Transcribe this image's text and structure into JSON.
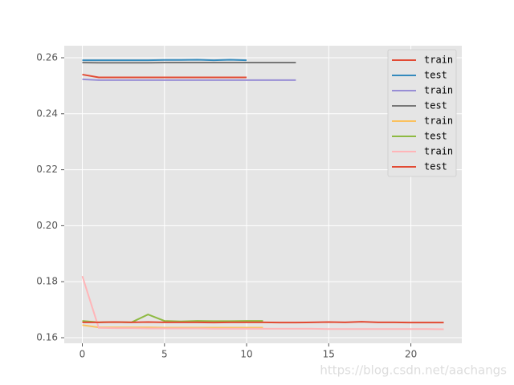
{
  "chart_data": {
    "type": "line",
    "watermark": "https://blog.csdn.net/aachangs",
    "xlim": [
      -1.1,
      23.1
    ],
    "xticks": [
      0,
      5,
      10,
      15,
      20
    ],
    "ylim": [
      0.158,
      0.2643
    ],
    "yticks": [
      0.16,
      0.18,
      {
        "value": 0.2,
        "label": "0.20"
      },
      0.22,
      0.24,
      0.26
    ],
    "grid": true,
    "legend": "upper right",
    "series": [
      {
        "name": "train",
        "color": "#E24A33",
        "x": [
          0,
          1,
          2,
          3,
          4,
          5,
          6,
          7,
          8,
          9,
          10
        ],
        "values": [
          0.254,
          0.253,
          0.253,
          0.253,
          0.253,
          0.253,
          0.253,
          0.253,
          0.253,
          0.253,
          0.253
        ]
      },
      {
        "name": "test",
        "color": "#348ABD",
        "x": [
          0,
          1,
          2,
          3,
          4,
          5,
          6,
          7,
          8,
          9,
          10
        ],
        "values": [
          0.2591,
          0.2591,
          0.2591,
          0.2591,
          0.2591,
          0.2592,
          0.2592,
          0.2593,
          0.2591,
          0.2593,
          0.2591
        ]
      },
      {
        "name": "train",
        "color": "#988ED5",
        "x": [
          0,
          1,
          2,
          3,
          4,
          5,
          6,
          7,
          8,
          9,
          10,
          11,
          12,
          13
        ],
        "values": [
          0.2523,
          0.252,
          0.252,
          0.252,
          0.252,
          0.252,
          0.252,
          0.252,
          0.252,
          0.252,
          0.252,
          0.252,
          0.252,
          0.252
        ]
      },
      {
        "name": "test",
        "color": "#777777",
        "x": [
          0,
          1,
          2,
          3,
          4,
          5,
          6,
          7,
          8,
          9,
          10,
          11,
          12,
          13
        ],
        "values": [
          0.2583,
          0.2582,
          0.2582,
          0.2582,
          0.2582,
          0.2583,
          0.2583,
          0.2583,
          0.2583,
          0.2583,
          0.2583,
          0.2583,
          0.2583,
          0.2583
        ]
      },
      {
        "name": "train",
        "color": "#FBC15E",
        "x": [
          0,
          1,
          2,
          3,
          4,
          5,
          6,
          7,
          8,
          9,
          10,
          11
        ],
        "values": [
          0.1645,
          0.1637,
          0.1637,
          0.1637,
          0.1637,
          0.1636,
          0.1636,
          0.1636,
          0.1636,
          0.1636,
          0.1636,
          0.1636
        ]
      },
      {
        "name": "test",
        "color": "#8EBA42",
        "x": [
          0,
          1,
          2,
          3,
          4,
          5,
          6,
          7,
          8,
          9,
          10,
          11
        ],
        "values": [
          0.166,
          0.1655,
          0.1656,
          0.1655,
          0.1683,
          0.166,
          0.1658,
          0.166,
          0.1659,
          0.1659,
          0.166,
          0.166
        ]
      },
      {
        "name": "train",
        "color": "#FFB5B8",
        "x": [
          0,
          1,
          2,
          3,
          4,
          5,
          6,
          7,
          8,
          9,
          10,
          11,
          12,
          13,
          14,
          15,
          16,
          17,
          18,
          19,
          20,
          21,
          22
        ],
        "values": [
          0.182,
          0.1635,
          0.1634,
          0.1634,
          0.1633,
          0.1633,
          0.1633,
          0.1633,
          0.1632,
          0.1632,
          0.1632,
          0.1632,
          0.1632,
          0.1632,
          0.1632,
          0.1631,
          0.1631,
          0.1631,
          0.1631,
          0.1631,
          0.1631,
          0.1631,
          0.163
        ]
      },
      {
        "name": "test",
        "color": "#E24A33",
        "x": [
          0,
          1,
          2,
          3,
          4,
          5,
          6,
          7,
          8,
          9,
          10,
          11,
          12,
          13,
          14,
          15,
          16,
          17,
          18,
          19,
          20,
          21,
          22
        ],
        "values": [
          0.1655,
          0.1655,
          0.1656,
          0.1655,
          0.1656,
          0.1655,
          0.1655,
          0.1655,
          0.1654,
          0.1655,
          0.1655,
          0.1655,
          0.1654,
          0.1654,
          0.1655,
          0.1656,
          0.1655,
          0.1657,
          0.1655,
          0.1655,
          0.1654,
          0.1654,
          0.1654
        ]
      }
    ]
  }
}
